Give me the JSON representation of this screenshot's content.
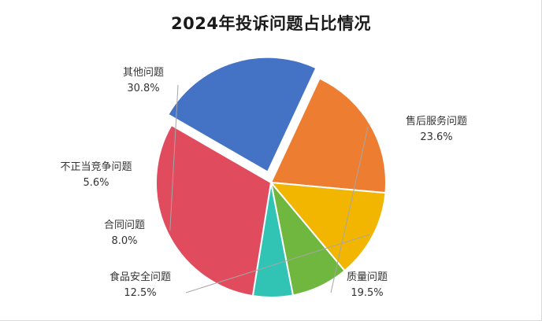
{
  "chart_data": {
    "type": "pie",
    "title": "2024年投诉问题占比情况",
    "slices": [
      {
        "name": "售后服务问题",
        "value": 23.6,
        "label": "23.6%",
        "color": "#4472C4",
        "exploded": true
      },
      {
        "name": "质量问题",
        "value": 19.5,
        "label": "19.5%",
        "color": "#ED7D31",
        "exploded": false
      },
      {
        "name": "食品安全问题",
        "value": 12.5,
        "label": "12.5%",
        "color": "#F2B600",
        "exploded": false
      },
      {
        "name": "合同问题",
        "value": 8.0,
        "label": "8.0%",
        "color": "#70B73F",
        "exploded": false
      },
      {
        "name": "不正当竞争问题",
        "value": 5.6,
        "label": "5.6%",
        "color": "#31C4B4",
        "exploded": false
      },
      {
        "name": "其他问题",
        "value": 30.8,
        "label": "30.8%",
        "color": "#E04B5E",
        "exploded": false
      }
    ],
    "legend": "none",
    "data_labels": "outside with leader lines"
  }
}
